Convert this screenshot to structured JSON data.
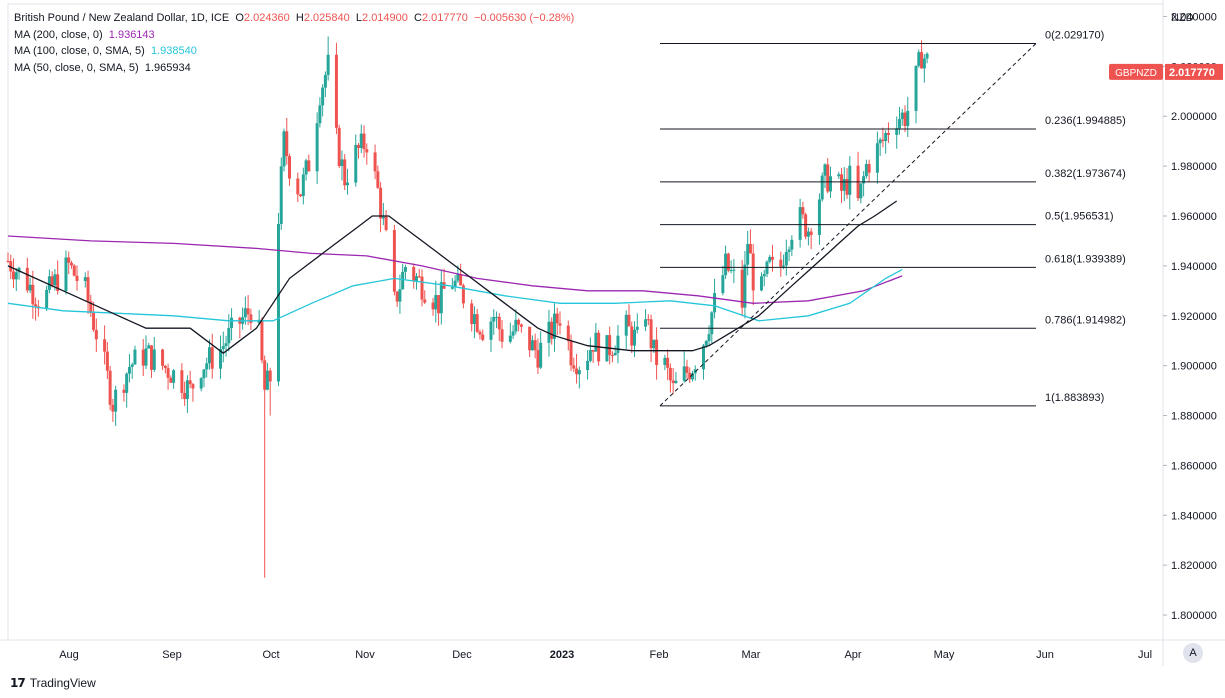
{
  "legend": {
    "symbol": "British Pound / New Zealand Dollar, 1D, ICE",
    "ohlc": {
      "o_label": "O",
      "o": "2.024360",
      "h_label": "H",
      "h": "2.025840",
      "l_label": "L",
      "l": "2.014900",
      "c_label": "C",
      "c": "2.017770",
      "change": "−0.005630 (−0.28%)"
    },
    "ma200_label": "MA (200, close, 0)",
    "ma200_value": "1.936143",
    "ma100_label": "MA (100, close, 0, SMA, 5)",
    "ma100_value": "1.938540",
    "ma50_label": "MA (50, close, 0, SMA, 5)",
    "ma50_value": "1.965934"
  },
  "axis": {
    "currency": "NZD",
    "auto_label": "A"
  },
  "price_tag": {
    "symbol": "GBPNZD",
    "value": "2.017770"
  },
  "footer": {
    "brand": "TradingView",
    "logo": "17"
  },
  "colors": {
    "up": "#26a69a",
    "down": "#ef5350",
    "ma200": "#9c27b0",
    "ma100": "#26c6da",
    "ma50": "#131722",
    "fib": "#131722"
  },
  "chart_data": {
    "type": "candlestick",
    "yrange": [
      1.79,
      2.045
    ],
    "y_ticks": [
      "2.040000",
      "2.020000",
      "2.000000",
      "1.980000",
      "1.960000",
      "1.940000",
      "1.920000",
      "1.900000",
      "1.880000",
      "1.860000",
      "1.840000",
      "1.820000",
      "1.800000"
    ],
    "x_ticks": [
      "Aug",
      "Sep",
      "Oct",
      "Nov",
      "Dec",
      "2023",
      "Feb",
      "Mar",
      "Apr",
      "May",
      "Jun",
      "Jul"
    ],
    "fib_levels": [
      {
        "ratio": "0",
        "value": 2.02917,
        "label": "0(2.029170)"
      },
      {
        "ratio": "0.236",
        "value": 1.994885,
        "label": "0.236(1.994885)"
      },
      {
        "ratio": "0.382",
        "value": 1.973674,
        "label": "0.382(1.973674)"
      },
      {
        "ratio": "0.5",
        "value": 1.956531,
        "label": "0.5(1.956531)"
      },
      {
        "ratio": "0.618",
        "value": 1.939389,
        "label": "0.618(1.939389)"
      },
      {
        "ratio": "0.786",
        "value": 1.914982,
        "label": "0.786(1.914982)"
      },
      {
        "ratio": "1",
        "value": 1.883893,
        "label": "1(1.883893)"
      }
    ],
    "close_path": [
      [
        0,
        1.942
      ],
      [
        6,
        1.935
      ],
      [
        12,
        1.925
      ],
      [
        18,
        1.935
      ],
      [
        22,
        1.94
      ],
      [
        28,
        1.93
      ],
      [
        34,
        1.905
      ],
      [
        38,
        1.885
      ],
      [
        44,
        1.9
      ],
      [
        50,
        1.905
      ],
      [
        56,
        1.9
      ],
      [
        62,
        1.895
      ],
      [
        66,
        1.89
      ],
      [
        70,
        1.9
      ],
      [
        76,
        1.905
      ],
      [
        82,
        1.915
      ],
      [
        86,
        1.92
      ],
      [
        90,
        1.925
      ],
      [
        92,
        1.9
      ],
      [
        93,
        1.89
      ],
      [
        95,
        1.895
      ],
      [
        98,
        1.96
      ],
      [
        100,
        1.99
      ],
      [
        103,
        1.975
      ],
      [
        106,
        1.97
      ],
      [
        110,
        1.985
      ],
      [
        113,
        2.01
      ],
      [
        116,
        2.02
      ],
      [
        119,
        1.99
      ],
      [
        122,
        1.975
      ],
      [
        126,
        1.985
      ],
      [
        130,
        1.99
      ],
      [
        134,
        1.97
      ],
      [
        137,
        1.95
      ],
      [
        140,
        1.925
      ],
      [
        144,
        1.94
      ],
      [
        148,
        1.935
      ],
      [
        152,
        1.93
      ],
      [
        156,
        1.925
      ],
      [
        160,
        1.935
      ],
      [
        164,
        1.93
      ],
      [
        168,
        1.922
      ],
      [
        172,
        1.915
      ],
      [
        176,
        1.92
      ],
      [
        180,
        1.91
      ],
      [
        184,
        1.915
      ],
      [
        188,
        1.91
      ],
      [
        192,
        1.905
      ],
      [
        196,
        1.912
      ],
      [
        200,
        1.92
      ],
      [
        204,
        1.905
      ],
      [
        208,
        1.9
      ],
      [
        212,
        1.91
      ],
      [
        216,
        1.905
      ],
      [
        220,
        1.91
      ],
      [
        224,
        1.915
      ],
      [
        228,
        1.91
      ],
      [
        230,
        1.93
      ],
      [
        232,
        1.915
      ],
      [
        234,
        1.905
      ],
      [
        236,
        1.9
      ],
      [
        238,
        1.9
      ],
      [
        241,
        1.89
      ],
      [
        244,
        1.895
      ],
      [
        248,
        1.9
      ],
      [
        252,
        1.91
      ],
      [
        256,
        1.925
      ],
      [
        260,
        1.94
      ],
      [
        263,
        1.935
      ],
      [
        266,
        1.925
      ],
      [
        268,
        1.95
      ],
      [
        270,
        1.935
      ],
      [
        273,
        1.93
      ],
      [
        276,
        1.94
      ],
      [
        279,
        1.935
      ],
      [
        282,
        1.95
      ],
      [
        286,
        1.96
      ],
      [
        290,
        1.955
      ],
      [
        293,
        1.965
      ],
      [
        296,
        1.975
      ],
      [
        299,
        1.975
      ],
      [
        302,
        1.97
      ],
      [
        305,
        1.975
      ],
      [
        308,
        1.965
      ],
      [
        311,
        1.98
      ],
      [
        314,
        1.985
      ],
      [
        317,
        1.99
      ],
      [
        319,
        1.995
      ],
      [
        322,
        2.0
      ],
      [
        325,
        2.0
      ],
      [
        327,
        2.005
      ],
      [
        329,
        2.015
      ],
      [
        331,
        2.025
      ],
      [
        333,
        2.022
      ],
      [
        334,
        2.018
      ]
    ],
    "ma50": [
      [
        0,
        1.94
      ],
      [
        10,
        1.935
      ],
      [
        20,
        1.93
      ],
      [
        30,
        1.925
      ],
      [
        40,
        1.92
      ],
      [
        50,
        1.915
      ],
      [
        58,
        1.915
      ],
      [
        66,
        1.915
      ],
      [
        72,
        1.91
      ],
      [
        78,
        1.905
      ],
      [
        84,
        1.91
      ],
      [
        90,
        1.915
      ],
      [
        96,
        1.925
      ],
      [
        102,
        1.935
      ],
      [
        108,
        1.94
      ],
      [
        114,
        1.945
      ],
      [
        120,
        1.95
      ],
      [
        126,
        1.955
      ],
      [
        132,
        1.96
      ],
      [
        138,
        1.96
      ],
      [
        144,
        1.955
      ],
      [
        150,
        1.95
      ],
      [
        156,
        1.945
      ],
      [
        162,
        1.94
      ],
      [
        168,
        1.935
      ],
      [
        174,
        1.93
      ],
      [
        180,
        1.925
      ],
      [
        186,
        1.92
      ],
      [
        192,
        1.915
      ],
      [
        198,
        1.912
      ],
      [
        204,
        1.91
      ],
      [
        210,
        1.908
      ],
      [
        218,
        1.907
      ],
      [
        226,
        1.906
      ],
      [
        234,
        1.906
      ],
      [
        242,
        1.906
      ],
      [
        248,
        1.906
      ],
      [
        254,
        1.908
      ],
      [
        260,
        1.912
      ],
      [
        266,
        1.916
      ],
      [
        272,
        1.92
      ],
      [
        278,
        1.926
      ],
      [
        284,
        1.932
      ],
      [
        290,
        1.938
      ],
      [
        296,
        1.944
      ],
      [
        302,
        1.95
      ],
      [
        308,
        1.956
      ],
      [
        314,
        1.96
      ],
      [
        318,
        1.963
      ],
      [
        322,
        1.966
      ]
    ],
    "ma100": [
      [
        0,
        1.925
      ],
      [
        20,
        1.922
      ],
      [
        40,
        1.921
      ],
      [
        60,
        1.92
      ],
      [
        80,
        1.918
      ],
      [
        96,
        1.918
      ],
      [
        110,
        1.925
      ],
      [
        125,
        1.932
      ],
      [
        140,
        1.935
      ],
      [
        160,
        1.932
      ],
      [
        180,
        1.928
      ],
      [
        200,
        1.925
      ],
      [
        220,
        1.925
      ],
      [
        240,
        1.926
      ],
      [
        256,
        1.924
      ],
      [
        272,
        1.918
      ],
      [
        290,
        1.92
      ],
      [
        305,
        1.925
      ],
      [
        318,
        1.935
      ],
      [
        324,
        1.9385
      ]
    ],
    "ma200": [
      [
        0,
        1.952
      ],
      [
        30,
        1.95
      ],
      [
        60,
        1.949
      ],
      [
        90,
        1.947
      ],
      [
        110,
        1.945
      ],
      [
        130,
        1.944
      ],
      [
        150,
        1.94
      ],
      [
        170,
        1.935
      ],
      [
        190,
        1.932
      ],
      [
        210,
        1.93
      ],
      [
        230,
        1.93
      ],
      [
        250,
        1.928
      ],
      [
        270,
        1.925
      ],
      [
        290,
        1.926
      ],
      [
        310,
        1.93
      ],
      [
        324,
        1.936
      ]
    ]
  }
}
